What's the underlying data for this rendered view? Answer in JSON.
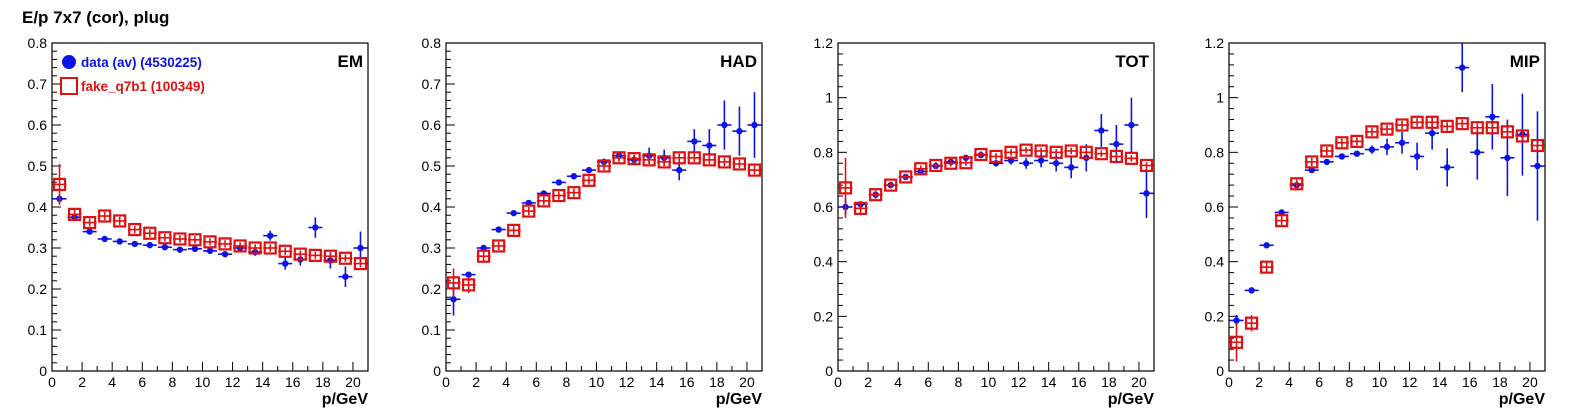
{
  "page": {
    "title": "E/p 7x7 (cor), plug"
  },
  "legend": {
    "data_label": "data (av) (4530225)",
    "fake_label": "fake_q7b1 (100349)"
  },
  "colors": {
    "data": "#0b13e6",
    "fake": "#e01010",
    "axis": "#000000"
  },
  "chart_data": [
    {
      "type": "scatter",
      "panel_label": "EM",
      "xlabel": "p/GeV",
      "xlim": [
        0,
        21
      ],
      "ylim": [
        0,
        0.8
      ],
      "x_ticks": [
        0,
        2,
        4,
        6,
        8,
        10,
        12,
        14,
        16,
        18,
        20
      ],
      "y_ticks": [
        0,
        0.1,
        0.2,
        0.3,
        0.4,
        0.5,
        0.6,
        0.7,
        0.8
      ],
      "series": [
        {
          "name": "data (av) (4530225)",
          "x": [
            0.5,
            1.5,
            2.5,
            3.5,
            4.5,
            5.5,
            6.5,
            7.5,
            8.5,
            9.5,
            10.5,
            11.5,
            12.5,
            13.5,
            14.5,
            15.5,
            16.5,
            17.5,
            18.5,
            19.5,
            20.5
          ],
          "y": [
            0.42,
            0.375,
            0.34,
            0.322,
            0.316,
            0.31,
            0.307,
            0.302,
            0.296,
            0.298,
            0.293,
            0.285,
            0.3,
            0.29,
            0.33,
            0.262,
            0.272,
            0.35,
            0.27,
            0.23,
            0.3
          ],
          "err": [
            0.01,
            0.005,
            0.004,
            0.003,
            0.003,
            0.003,
            0.003,
            0.003,
            0.003,
            0.004,
            0.005,
            0.006,
            0.007,
            0.009,
            0.012,
            0.015,
            0.015,
            0.025,
            0.02,
            0.025,
            0.04
          ]
        },
        {
          "name": "fake_q7b1 (100349)",
          "x": [
            0.5,
            1.5,
            2.5,
            3.5,
            4.5,
            5.5,
            6.5,
            7.5,
            8.5,
            9.5,
            10.5,
            11.5,
            12.5,
            13.5,
            14.5,
            15.5,
            16.5,
            17.5,
            18.5,
            19.5,
            20.5
          ],
          "y": [
            0.455,
            0.382,
            0.362,
            0.378,
            0.366,
            0.345,
            0.336,
            0.325,
            0.322,
            0.32,
            0.315,
            0.31,
            0.305,
            0.3,
            0.3,
            0.292,
            0.285,
            0.282,
            0.28,
            0.275,
            0.262
          ],
          "err": [
            0.05,
            0.012,
            0.01,
            0.01,
            0.01,
            0.009,
            0.009,
            0.009,
            0.009,
            0.009,
            0.009,
            0.009,
            0.009,
            0.009,
            0.009,
            0.009,
            0.009,
            0.009,
            0.009,
            0.009,
            0.009
          ]
        }
      ]
    },
    {
      "type": "scatter",
      "panel_label": "HAD",
      "xlabel": "p/GeV",
      "xlim": [
        0,
        21
      ],
      "ylim": [
        0,
        0.8
      ],
      "x_ticks": [
        0,
        2,
        4,
        6,
        8,
        10,
        12,
        14,
        16,
        18,
        20
      ],
      "y_ticks": [
        0,
        0.1,
        0.2,
        0.3,
        0.4,
        0.5,
        0.6,
        0.7,
        0.8
      ],
      "series": [
        {
          "name": "data (av) (4530225)",
          "x": [
            0.5,
            1.5,
            2.5,
            3.5,
            4.5,
            5.5,
            6.5,
            7.5,
            8.5,
            9.5,
            10.5,
            11.5,
            12.5,
            13.5,
            14.5,
            15.5,
            16.5,
            17.5,
            18.5,
            19.5,
            20.5
          ],
          "y": [
            0.175,
            0.235,
            0.3,
            0.345,
            0.385,
            0.41,
            0.433,
            0.46,
            0.475,
            0.49,
            0.51,
            0.525,
            0.515,
            0.525,
            0.52,
            0.49,
            0.56,
            0.55,
            0.6,
            0.585,
            0.6
          ],
          "err": [
            0.04,
            0.006,
            0.004,
            0.004,
            0.004,
            0.004,
            0.004,
            0.005,
            0.005,
            0.006,
            0.008,
            0.01,
            0.012,
            0.02,
            0.02,
            0.025,
            0.03,
            0.04,
            0.06,
            0.06,
            0.08
          ]
        },
        {
          "name": "fake_q7b1 (100349)",
          "x": [
            0.5,
            1.5,
            2.5,
            3.5,
            4.5,
            5.5,
            6.5,
            7.5,
            8.5,
            9.5,
            10.5,
            11.5,
            12.5,
            13.5,
            14.5,
            15.5,
            16.5,
            17.5,
            18.5,
            19.5,
            20.5
          ],
          "y": [
            0.215,
            0.21,
            0.28,
            0.305,
            0.343,
            0.39,
            0.415,
            0.428,
            0.435,
            0.465,
            0.5,
            0.52,
            0.518,
            0.515,
            0.51,
            0.52,
            0.52,
            0.515,
            0.51,
            0.505,
            0.49
          ],
          "err": [
            0.035,
            0.02,
            0.012,
            0.01,
            0.01,
            0.01,
            0.01,
            0.01,
            0.01,
            0.01,
            0.01,
            0.01,
            0.01,
            0.01,
            0.01,
            0.01,
            0.01,
            0.01,
            0.01,
            0.01,
            0.01
          ]
        }
      ]
    },
    {
      "type": "scatter",
      "panel_label": "TOT",
      "xlabel": "p/GeV",
      "xlim": [
        0,
        21
      ],
      "ylim": [
        0,
        1.2
      ],
      "x_ticks": [
        0,
        2,
        4,
        6,
        8,
        10,
        12,
        14,
        16,
        18,
        20
      ],
      "y_ticks": [
        0,
        0.2,
        0.4,
        0.6,
        0.8,
        1,
        1.2
      ],
      "series": [
        {
          "name": "data (av) (4530225)",
          "x": [
            0.5,
            1.5,
            2.5,
            3.5,
            4.5,
            5.5,
            6.5,
            7.5,
            8.5,
            9.5,
            10.5,
            11.5,
            12.5,
            13.5,
            14.5,
            15.5,
            16.5,
            17.5,
            18.5,
            19.5,
            20.5
          ],
          "y": [
            0.6,
            0.61,
            0.645,
            0.68,
            0.71,
            0.73,
            0.75,
            0.765,
            0.78,
            0.79,
            0.76,
            0.77,
            0.76,
            0.77,
            0.76,
            0.745,
            0.78,
            0.88,
            0.83,
            0.9,
            0.65
          ],
          "err": [
            0.03,
            0.01,
            0.006,
            0.006,
            0.006,
            0.006,
            0.006,
            0.007,
            0.008,
            0.01,
            0.012,
            0.015,
            0.02,
            0.025,
            0.03,
            0.04,
            0.05,
            0.06,
            0.07,
            0.1,
            0.09
          ]
        },
        {
          "name": "fake_q7b1 (100349)",
          "x": [
            0.5,
            1.5,
            2.5,
            3.5,
            4.5,
            5.5,
            6.5,
            7.5,
            8.5,
            9.5,
            10.5,
            11.5,
            12.5,
            13.5,
            14.5,
            15.5,
            16.5,
            17.5,
            18.5,
            19.5,
            20.5
          ],
          "y": [
            0.67,
            0.595,
            0.645,
            0.68,
            0.71,
            0.74,
            0.752,
            0.76,
            0.762,
            0.792,
            0.785,
            0.8,
            0.808,
            0.805,
            0.8,
            0.805,
            0.8,
            0.795,
            0.785,
            0.778,
            0.752
          ],
          "err": [
            0.11,
            0.025,
            0.015,
            0.012,
            0.012,
            0.012,
            0.012,
            0.012,
            0.012,
            0.012,
            0.012,
            0.012,
            0.012,
            0.012,
            0.012,
            0.012,
            0.012,
            0.012,
            0.012,
            0.012,
            0.012
          ]
        }
      ]
    },
    {
      "type": "scatter",
      "panel_label": "MIP",
      "xlabel": "p/GeV",
      "xlim": [
        0,
        21
      ],
      "ylim": [
        0,
        1.2
      ],
      "x_ticks": [
        0,
        2,
        4,
        6,
        8,
        10,
        12,
        14,
        16,
        18,
        20
      ],
      "y_ticks": [
        0,
        0.2,
        0.4,
        0.6,
        0.8,
        1,
        1.2
      ],
      "series": [
        {
          "name": "data (av) (4530225)",
          "x": [
            0.5,
            1.5,
            2.5,
            3.5,
            4.5,
            5.5,
            6.5,
            7.5,
            8.5,
            9.5,
            10.5,
            11.5,
            12.5,
            13.5,
            14.5,
            15.5,
            16.5,
            17.5,
            18.5,
            19.5,
            20.5
          ],
          "y": [
            0.185,
            0.295,
            0.46,
            0.58,
            0.68,
            0.735,
            0.765,
            0.785,
            0.795,
            0.81,
            0.82,
            0.835,
            0.785,
            0.87,
            0.745,
            1.11,
            0.8,
            0.93,
            0.78,
            0.865,
            0.75
          ],
          "err": [
            0.02,
            0.006,
            0.005,
            0.005,
            0.006,
            0.006,
            0.007,
            0.008,
            0.01,
            0.015,
            0.03,
            0.04,
            0.05,
            0.06,
            0.07,
            0.09,
            0.1,
            0.12,
            0.14,
            0.15,
            0.2
          ]
        },
        {
          "name": "fake_q7b1 (100349)",
          "x": [
            0.5,
            1.5,
            2.5,
            3.5,
            4.5,
            5.5,
            6.5,
            7.5,
            8.5,
            9.5,
            10.5,
            11.5,
            12.5,
            13.5,
            14.5,
            15.5,
            16.5,
            17.5,
            18.5,
            19.5,
            20.5
          ],
          "y": [
            0.105,
            0.175,
            0.38,
            0.55,
            0.685,
            0.765,
            0.805,
            0.835,
            0.84,
            0.875,
            0.885,
            0.9,
            0.91,
            0.91,
            0.895,
            0.905,
            0.89,
            0.89,
            0.875,
            0.86,
            0.825
          ],
          "err": [
            0.07,
            0.03,
            0.02,
            0.02,
            0.015,
            0.015,
            0.015,
            0.015,
            0.015,
            0.015,
            0.015,
            0.015,
            0.015,
            0.015,
            0.015,
            0.015,
            0.015,
            0.015,
            0.015,
            0.015,
            0.015
          ]
        }
      ]
    }
  ]
}
